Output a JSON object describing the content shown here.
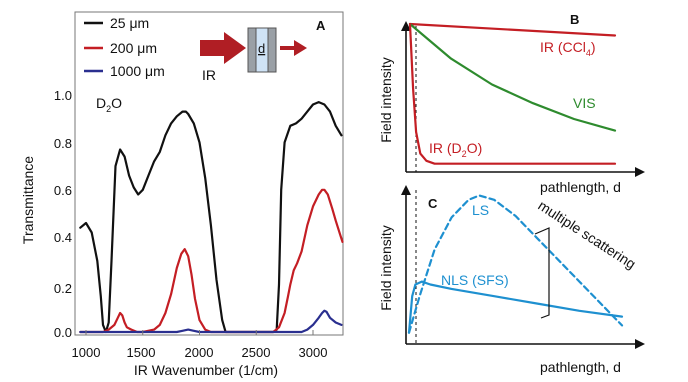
{
  "chart_data": [
    {
      "panel": "A",
      "type": "line",
      "xlabel": "IR Wavenumber (1/cm)",
      "ylabel": "Transmittance",
      "xlim": [
        950,
        3270
      ],
      "ylim": [
        -0.02,
        1.12
      ],
      "xticks": [
        "1000",
        "1500",
        "2000",
        "2500",
        "3000"
      ],
      "yticks": [
        "0.0",
        "0.2",
        "0.4",
        "0.6",
        "0.8",
        "1.0"
      ],
      "annotation": "D2O",
      "legend_position": "top-left",
      "inset_label": "IR",
      "inset_cell_label": "d",
      "series": [
        {
          "name": "25 μm",
          "color": "#111111",
          "x": [
            950,
            1000,
            1050,
            1100,
            1130,
            1150,
            1175,
            1200,
            1225,
            1260,
            1300,
            1340,
            1380,
            1420,
            1460,
            1500,
            1550,
            1600,
            1650,
            1700,
            1750,
            1800,
            1850,
            1880,
            1900,
            1950,
            2000,
            2050,
            2100,
            2150,
            2200,
            2230,
            2280,
            2330,
            2400,
            2500,
            2600,
            2650,
            2680,
            2700,
            2720,
            2750,
            2800,
            2850,
            2900,
            2950,
            3000,
            3050,
            3100,
            3150,
            3200,
            3250
          ],
          "y": [
            0.44,
            0.46,
            0.42,
            0.3,
            0.15,
            0.03,
            0.0,
            0.04,
            0.3,
            0.7,
            0.77,
            0.74,
            0.66,
            0.61,
            0.58,
            0.6,
            0.66,
            0.72,
            0.76,
            0.83,
            0.88,
            0.91,
            0.93,
            0.93,
            0.92,
            0.88,
            0.8,
            0.65,
            0.45,
            0.22,
            0.05,
            0.0,
            0.0,
            0.0,
            0.0,
            0.0,
            0.0,
            0.0,
            0.01,
            0.2,
            0.6,
            0.8,
            0.87,
            0.88,
            0.9,
            0.93,
            0.96,
            0.97,
            0.96,
            0.93,
            0.87,
            0.83
          ]
        },
        {
          "name": "200 μm",
          "color": "#c41e24",
          "x": [
            950,
            1150,
            1200,
            1250,
            1280,
            1300,
            1320,
            1340,
            1360,
            1400,
            1450,
            1500,
            1600,
            1650,
            1700,
            1750,
            1800,
            1840,
            1870,
            1900,
            1930,
            1960,
            2000,
            2050,
            2100,
            2200,
            2300,
            2500,
            2650,
            2700,
            2750,
            2780,
            2800,
            2830,
            2860,
            2900,
            2950,
            3000,
            3050,
            3080,
            3100,
            3130,
            3170,
            3200,
            3240,
            3260
          ],
          "y": [
            0.0,
            0.0,
            0.01,
            0.03,
            0.06,
            0.08,
            0.07,
            0.04,
            0.02,
            0.01,
            0.0,
            0.0,
            0.01,
            0.03,
            0.08,
            0.16,
            0.27,
            0.33,
            0.35,
            0.32,
            0.24,
            0.14,
            0.05,
            0.01,
            0.0,
            0.0,
            0.0,
            0.0,
            0.0,
            0.02,
            0.08,
            0.15,
            0.2,
            0.26,
            0.29,
            0.34,
            0.45,
            0.53,
            0.58,
            0.6,
            0.6,
            0.58,
            0.52,
            0.47,
            0.41,
            0.38
          ]
        },
        {
          "name": "1000 μm",
          "color": "#2a2f8f",
          "x": [
            950,
            1800,
            1850,
            1900,
            1950,
            2000,
            2900,
            2950,
            3000,
            3050,
            3080,
            3100,
            3120,
            3150,
            3200,
            3250
          ],
          "y": [
            0.0,
            0.0,
            0.005,
            0.01,
            0.005,
            0.0,
            0.0,
            0.01,
            0.03,
            0.06,
            0.08,
            0.09,
            0.085,
            0.06,
            0.04,
            0.03
          ]
        }
      ]
    },
    {
      "panel": "B",
      "type": "line",
      "xlabel": "pathlength, d",
      "ylabel": "Field intensity",
      "series": [
        {
          "name": "IR (CCl4)",
          "color": "#c41e24",
          "x": [
            0,
            1
          ],
          "y": [
            1.0,
            0.92
          ]
        },
        {
          "name": "VIS",
          "color": "#2e8b2e",
          "x": [
            0,
            0.2,
            0.4,
            0.6,
            0.8,
            1
          ],
          "y": [
            1.0,
            0.76,
            0.58,
            0.45,
            0.34,
            0.26
          ]
        },
        {
          "name": "IR (D2O)",
          "color": "#c41e24",
          "x": [
            0,
            0.015,
            0.03,
            0.05,
            0.08,
            0.12,
            0.2,
            1
          ],
          "y": [
            1.0,
            0.55,
            0.25,
            0.1,
            0.05,
            0.03,
            0.03,
            0.03
          ]
        }
      ]
    },
    {
      "panel": "C",
      "type": "line",
      "xlabel": "pathlength, d",
      "ylabel": "Field intensity",
      "annotation": "multiple scattering",
      "series": [
        {
          "name": "LS",
          "color": "#1e90d0",
          "style": "dashed",
          "x": [
            0,
            0.05,
            0.12,
            0.2,
            0.28,
            0.33,
            0.4,
            0.5,
            0.6,
            0.7,
            0.8,
            0.9,
            1.0
          ],
          "y": [
            0.05,
            0.3,
            0.62,
            0.84,
            0.96,
            0.99,
            0.96,
            0.85,
            0.7,
            0.55,
            0.4,
            0.25,
            0.1
          ]
        },
        {
          "name": "NLS (SFS)",
          "color": "#1e90d0",
          "style": "solid",
          "x": [
            0,
            0.015,
            0.03,
            0.06,
            0.1,
            0.2,
            0.4,
            0.6,
            0.8,
            1.0
          ],
          "y": [
            0.05,
            0.3,
            0.38,
            0.4,
            0.38,
            0.35,
            0.3,
            0.25,
            0.2,
            0.16
          ]
        }
      ]
    }
  ],
  "panel_letters": {
    "a": "A",
    "b": "B",
    "c": "C"
  },
  "labels": {
    "legend_25": "25 μm",
    "legend_200": "200 μm",
    "legend_1000": "1000 μm",
    "inset_ir": "IR",
    "inset_d": "d",
    "d2o_main": "D",
    "d2o_sub": "2",
    "d2o_end": "O",
    "a_ylabel": "Transmittance",
    "a_xlabel": "IR Wavenumber (1/cm)",
    "b_ylabel": "Field intensity",
    "b_xlabel": "pathlength, d",
    "b_ccl4_pre": "IR (CCl",
    "b_ccl4_sub": "4",
    "b_ccl4_end": ")",
    "b_vis": "VIS",
    "b_d2o_pre": "IR (D",
    "b_d2o_sub": "2",
    "b_d2o_end": "O)",
    "c_ylabel": "Field intensity",
    "c_xlabel": "pathlength, d",
    "c_ls": "LS",
    "c_nls": "NLS (SFS)",
    "c_multiple": "multiple scattering"
  },
  "colors": {
    "black": "#111111",
    "red": "#c41e24",
    "navy": "#2a2f8f",
    "green": "#2e8b2e",
    "blue": "#1e90d0",
    "axis": "#777777"
  }
}
